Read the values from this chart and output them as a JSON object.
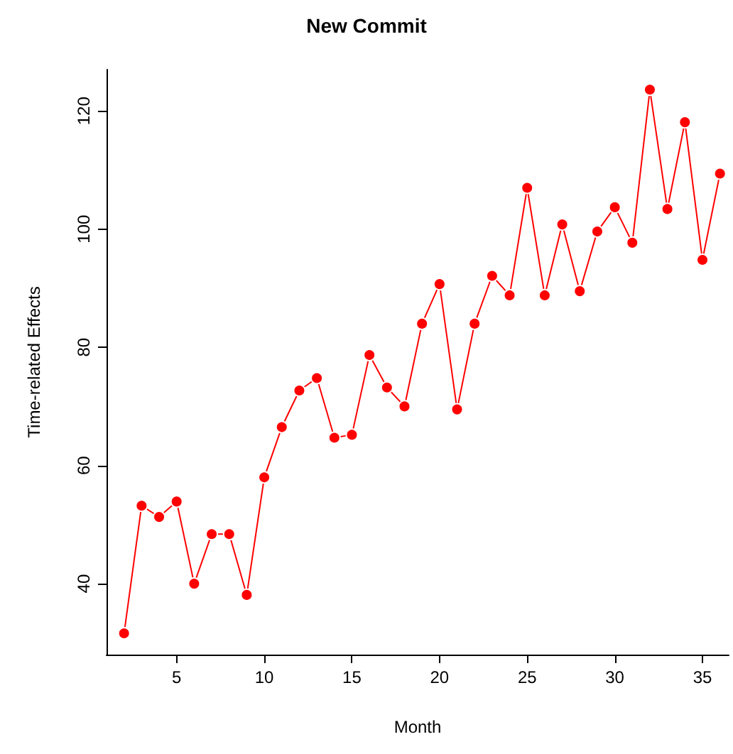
{
  "chart_data": {
    "type": "line",
    "title": "New Commit",
    "xlabel": "Month",
    "ylabel": "Time-related Effects",
    "x": [
      2,
      3,
      4,
      5,
      6,
      7,
      8,
      9,
      10,
      11,
      12,
      13,
      14,
      15,
      16,
      17,
      18,
      19,
      20,
      21,
      22,
      23,
      24,
      25,
      26,
      27,
      28,
      29,
      30,
      31,
      32,
      33,
      34,
      35,
      36
    ],
    "series": [
      {
        "color": "#ff0000",
        "values": [
          31.6,
          53.2,
          51.3,
          53.9,
          40,
          48.4,
          48.4,
          38.1,
          58.0,
          66.5,
          72.7,
          74.8,
          64.7,
          65.2,
          78.7,
          73.2,
          70.0,
          84.0,
          90.7,
          69.5,
          84.0,
          92.1,
          88.8,
          107.0,
          88.8,
          100.8,
          89.5,
          99.6,
          103.7,
          97.7,
          123.6,
          103.4,
          118.1,
          94.8,
          109.4
        ]
      }
    ],
    "xlim": [
      1,
      36.5
    ],
    "ylim": [
      28,
      127
    ],
    "xticks": [
      5,
      10,
      15,
      20,
      25,
      30,
      35
    ],
    "yticks": [
      40,
      60,
      80,
      100,
      120
    ],
    "grid": false,
    "marker": "circle",
    "line_style": "solid"
  }
}
